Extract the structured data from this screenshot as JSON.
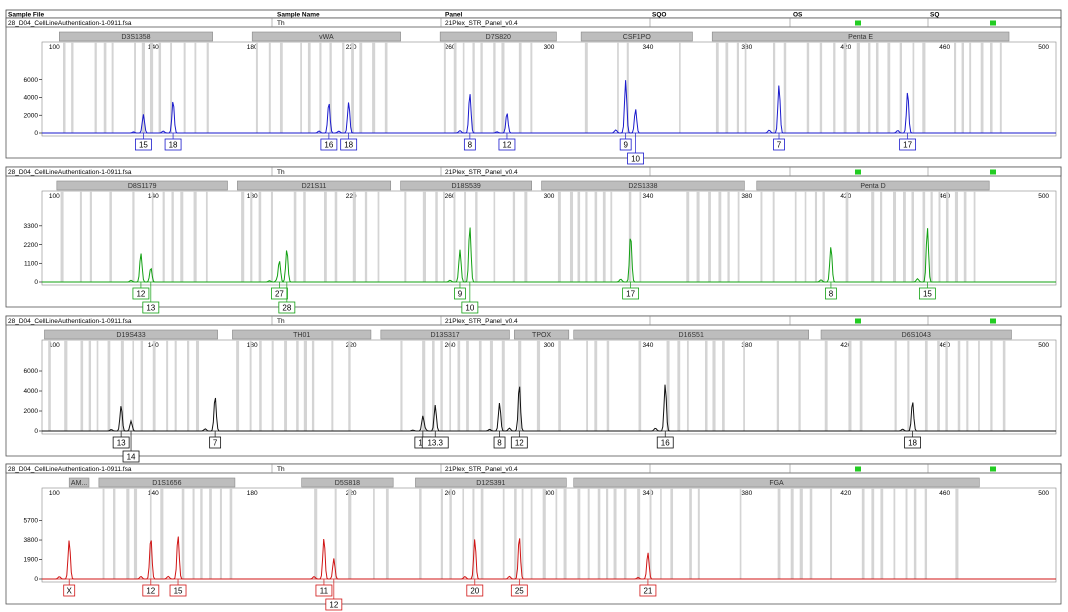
{
  "header": {
    "col_sample_file": "Sample File",
    "col_sample_name": "Sample Name",
    "col_panel": "Panel",
    "col_sqo": "SQO",
    "col_os": "OS",
    "col_sq": "SQ"
  },
  "colors": {
    "blue": "#1a1acc",
    "green": "#12a012",
    "black": "#111111",
    "red": "#d01414",
    "status_ok": "#22cc22"
  },
  "axis": {
    "xlim": [
      95,
      505
    ],
    "ticks": [
      100,
      140,
      180,
      220,
      260,
      300,
      340,
      380,
      420,
      460,
      500
    ]
  },
  "chart_data": [
    {
      "type": "line",
      "dye": "blue",
      "sample_file": "28_D04_CellLineAuthentication-1-0911.fsa",
      "sample_name": "Th",
      "panel": "21Plex_STR_Panel_v0.4",
      "ylim": [
        0,
        9000
      ],
      "y_ticks": [
        "0",
        "2000",
        "4000",
        "6000"
      ],
      "y_tick_values": [
        0,
        2000,
        4000,
        6000
      ],
      "loci": [
        {
          "name": "D3S1358",
          "start": 102,
          "end": 164
        },
        {
          "name": "vWA",
          "start": 180,
          "end": 240
        },
        {
          "name": "D7S820",
          "start": 256,
          "end": 303
        },
        {
          "name": "CSF1PO",
          "start": 313,
          "end": 358
        },
        {
          "name": "Penta E",
          "start": 366,
          "end": 486
        }
      ],
      "peaks": [
        {
          "size": 136,
          "height": 2100
        },
        {
          "size": 148,
          "height": 3700
        },
        {
          "size": 211,
          "height": 3500
        },
        {
          "size": 219,
          "height": 3500
        },
        {
          "size": 268,
          "height": 4500
        },
        {
          "size": 283,
          "height": 2300
        },
        {
          "size": 331,
          "height": 5800
        },
        {
          "size": 335,
          "height": 2700
        },
        {
          "size": 393,
          "height": 5400
        },
        {
          "size": 445,
          "height": 4700
        }
      ],
      "labels": [
        {
          "text": "15",
          "size": 136,
          "row": 0
        },
        {
          "text": "18",
          "size": 148,
          "row": 0
        },
        {
          "text": "16",
          "size": 211,
          "row": 0
        },
        {
          "text": "18",
          "size": 219,
          "row": 0
        },
        {
          "text": "8",
          "size": 268,
          "row": 0
        },
        {
          "text": "12",
          "size": 283,
          "row": 0
        },
        {
          "text": "9",
          "size": 331,
          "row": 0
        },
        {
          "text": "10",
          "size": 335,
          "row": 1
        },
        {
          "text": "7",
          "size": 393,
          "row": 0
        },
        {
          "text": "17",
          "size": 445,
          "row": 0
        }
      ]
    },
    {
      "type": "line",
      "dye": "green",
      "sample_file": "28_D04_CellLineAuthentication-1-0911.fsa",
      "sample_name": "Th",
      "panel": "21Plex_STR_Panel_v0.4",
      "ylim": [
        0,
        4700
      ],
      "y_ticks": [
        "0",
        "1100",
        "2200",
        "3300"
      ],
      "y_tick_values": [
        0,
        1100,
        2200,
        3300
      ],
      "loci": [
        {
          "name": "D8S1179",
          "start": 101,
          "end": 170
        },
        {
          "name": "D21S11",
          "start": 174,
          "end": 236
        },
        {
          "name": "D18S539",
          "start": 240,
          "end": 293
        },
        {
          "name": "D2S1338",
          "start": 297,
          "end": 379
        },
        {
          "name": "Penta D",
          "start": 384,
          "end": 478
        }
      ],
      "peaks": [
        {
          "size": 135,
          "height": 1650
        },
        {
          "size": 139,
          "height": 850
        },
        {
          "size": 191,
          "height": 1250
        },
        {
          "size": 194,
          "height": 1950
        },
        {
          "size": 264,
          "height": 1700
        },
        {
          "size": 268,
          "height": 3300
        },
        {
          "size": 333,
          "height": 2800
        },
        {
          "size": 414,
          "height": 2100
        },
        {
          "size": 453,
          "height": 3200
        }
      ],
      "labels": [
        {
          "text": "12",
          "size": 135,
          "row": 0
        },
        {
          "text": "13",
          "size": 139,
          "row": 1
        },
        {
          "text": "27",
          "size": 191,
          "row": 0
        },
        {
          "text": "28",
          "size": 194,
          "row": 1
        },
        {
          "text": "9",
          "size": 264,
          "row": 0
        },
        {
          "text": "10",
          "size": 268,
          "row": 1
        },
        {
          "text": "17",
          "size": 333,
          "row": 0
        },
        {
          "text": "8",
          "size": 414,
          "row": 0
        },
        {
          "text": "15",
          "size": 453,
          "row": 0
        }
      ]
    },
    {
      "type": "line",
      "dye": "black",
      "sample_file": "28_D04_CellLineAuthentication-1-0911.fsa",
      "sample_name": "Th",
      "panel": "21Plex_STR_Panel_v0.4",
      "ylim": [
        0,
        8000
      ],
      "y_ticks": [
        "0",
        "2000",
        "4000",
        "6000"
      ],
      "y_tick_values": [
        0,
        2000,
        4000,
        6000
      ],
      "loci": [
        {
          "name": "D19S433",
          "start": 96,
          "end": 166
        },
        {
          "name": "TH01",
          "start": 172,
          "end": 228
        },
        {
          "name": "D13S317",
          "start": 232,
          "end": 284
        },
        {
          "name": "TPOX",
          "start": 286,
          "end": 308
        },
        {
          "name": "D16S51",
          "start": 310,
          "end": 405
        },
        {
          "name": "D6S1043",
          "start": 410,
          "end": 487
        }
      ],
      "peaks": [
        {
          "size": 127,
          "height": 2500
        },
        {
          "size": 131,
          "height": 1000
        },
        {
          "size": 165,
          "height": 3500
        },
        {
          "size": 249,
          "height": 1500
        },
        {
          "size": 254,
          "height": 2600
        },
        {
          "size": 280,
          "height": 2800
        },
        {
          "size": 288,
          "height": 4700
        },
        {
          "size": 347,
          "height": 4700
        },
        {
          "size": 447,
          "height": 3000
        }
      ],
      "labels": [
        {
          "text": "13",
          "size": 127,
          "row": 0
        },
        {
          "text": "14",
          "size": 131,
          "row": 1
        },
        {
          "text": "7",
          "size": 165,
          "row": 0
        },
        {
          "text": "12",
          "size": 249,
          "row": 0
        },
        {
          "text": "13.3",
          "size": 254,
          "row": 0
        },
        {
          "text": "8",
          "size": 280,
          "row": 0
        },
        {
          "text": "12",
          "size": 288,
          "row": 0
        },
        {
          "text": "16",
          "size": 347,
          "row": 0
        },
        {
          "text": "18",
          "size": 447,
          "row": 0
        }
      ]
    },
    {
      "type": "line",
      "dye": "red",
      "sample_file": "28_D04_CellLineAuthentication-1-0911.fsa",
      "sample_name": "Th",
      "panel": "21Plex_STR_Panel_v0.4",
      "ylim": [
        0,
        7800
      ],
      "y_ticks": [
        "0",
        "1900",
        "3800",
        "5700"
      ],
      "y_tick_values": [
        0,
        1900,
        3800,
        5700
      ],
      "loci": [
        {
          "name": "AM...",
          "start": 106,
          "end": 114
        },
        {
          "name": "D1S1656",
          "start": 118,
          "end": 173
        },
        {
          "name": "D5S818",
          "start": 200,
          "end": 237
        },
        {
          "name": "D12S391",
          "start": 246,
          "end": 307
        },
        {
          "name": "FGA",
          "start": 310,
          "end": 474
        }
      ],
      "peaks": [
        {
          "size": 106,
          "height": 3800
        },
        {
          "size": 139,
          "height": 4100
        },
        {
          "size": 150,
          "height": 4300
        },
        {
          "size": 209,
          "height": 3900
        },
        {
          "size": 213,
          "height": 2000
        },
        {
          "size": 270,
          "height": 3900
        },
        {
          "size": 288,
          "height": 4200
        },
        {
          "size": 340,
          "height": 2600
        }
      ],
      "labels": [
        {
          "text": "X",
          "size": 106,
          "row": 0
        },
        {
          "text": "12",
          "size": 139,
          "row": 0
        },
        {
          "text": "15",
          "size": 150,
          "row": 0
        },
        {
          "text": "11",
          "size": 209,
          "row": 0
        },
        {
          "text": "12",
          "size": 213,
          "row": 1
        },
        {
          "text": "20",
          "size": 270,
          "row": 0
        },
        {
          "text": "25",
          "size": 288,
          "row": 0
        },
        {
          "text": "21",
          "size": 340,
          "row": 0
        }
      ]
    }
  ]
}
